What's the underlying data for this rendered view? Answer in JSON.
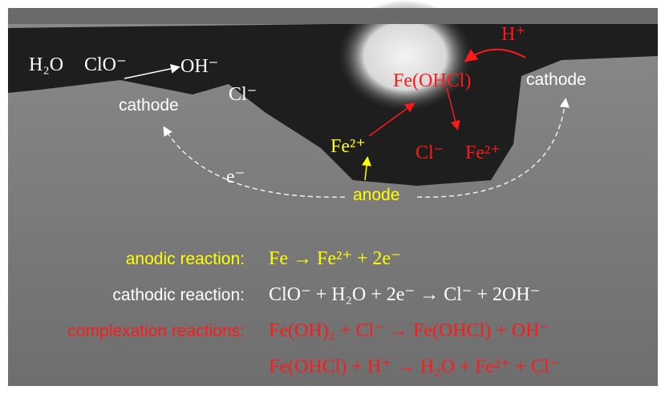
{
  "labels": {
    "h2o": "H₂O",
    "clo": "ClO⁻",
    "oh": "OH⁻",
    "cl_left": "Cl⁻",
    "cathode_left": "cathode",
    "h_plus": "H⁺",
    "fe_ohcl": "Fe(OHCl)",
    "cathode_right": "cathode",
    "fe2_yellow": "Fe²⁺",
    "cl_red": "Cl⁻",
    "fe2_red": "Fe²⁺",
    "electron": "e⁻",
    "anode": "anode"
  },
  "reactions": [
    {
      "name": "anodic reaction:",
      "equation": "Fe → Fe²⁺ + 2e⁻"
    },
    {
      "name": "cathodic reaction:",
      "equation": "ClO⁻ + H₂O + 2e⁻ → Cl⁻ + 2OH⁻"
    },
    {
      "name": "complexation reactions:",
      "equation": "Fe(OH)₂ + Cl⁻ → Fe(OHCl) + OH⁻"
    },
    {
      "equation": "Fe(OHCl) + H⁺ → H₂O + Fe²⁺ + Cl⁻"
    }
  ]
}
